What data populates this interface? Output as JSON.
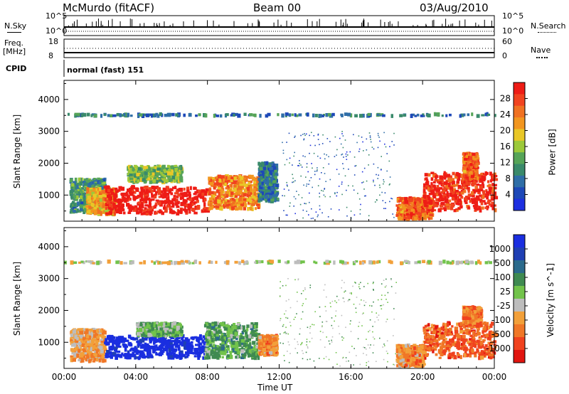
{
  "header": {
    "station": "McMurdo (fitACF)",
    "beam": "Beam 00",
    "date": "03/Aug/2010"
  },
  "top_panels": {
    "nsky_label": "N.Sky",
    "nsearch_label": "N.Search",
    "noise_ticks": [
      "10^5",
      "10^0"
    ],
    "freq_label": "Freq.",
    "freq_unit": "[MHz]",
    "freq_ticks": [
      "18",
      "8"
    ],
    "nave_label": "Nave",
    "nave_ticks": [
      "60",
      "0"
    ],
    "cpid_label": "CPID",
    "cpid_value": "normal (fast) 151"
  },
  "colors": {
    "power_scale": [
      "#1d2fe0",
      "#1d48b8",
      "#2f6ea7",
      "#3a8a6b",
      "#56a458",
      "#9cc93a",
      "#e9c727",
      "#f2961f",
      "#f07121",
      "#f1431f",
      "#ee1c16"
    ],
    "velocity_scale": [
      "#e11510",
      "#f0421e",
      "#f07727",
      "#f2a03a",
      "#bdbdbd",
      "#72c34b",
      "#3f8a51",
      "#2b6a8c",
      "#1f3fb3",
      "#1a2ee0"
    ]
  },
  "chart_data": [
    {
      "type": "heatmap",
      "panel": "power",
      "title": "",
      "xlabel": "Time UT",
      "ylabel": "Slant Range [km]",
      "xlim": [
        0,
        24
      ],
      "ylim": [
        180,
        4600
      ],
      "x_ticks": [
        "00:00",
        "04:00",
        "08:00",
        "12:00",
        "16:00",
        "20:00",
        "00:00"
      ],
      "y_ticks": [
        1000,
        2000,
        3000,
        4000
      ],
      "colorbar": {
        "label": "Power [dB]",
        "ticks": [
          "4",
          "8",
          "12",
          "16",
          "20",
          "24",
          "28"
        ],
        "range": [
          0,
          30
        ]
      },
      "regions": [
        {
          "t0": 0.3,
          "t1": 2.2,
          "r0": 450,
          "r1": 1500,
          "value_db": 10
        },
        {
          "t0": 1.2,
          "t1": 2.8,
          "r0": 400,
          "r1": 1200,
          "value_db": 20
        },
        {
          "t0": 2.2,
          "t1": 8.0,
          "r0": 400,
          "r1": 1250,
          "value_db": 30
        },
        {
          "t0": 3.5,
          "t1": 6.5,
          "r0": 1400,
          "r1": 1900,
          "value_db": 14
        },
        {
          "t0": 8.0,
          "t1": 10.8,
          "r0": 550,
          "r1": 1600,
          "value_db": 22
        },
        {
          "t0": 10.8,
          "t1": 11.8,
          "r0": 800,
          "r1": 2000,
          "value_db": 8
        },
        {
          "t0": 12.0,
          "t1": 18.5,
          "r0": 250,
          "r1": 3000,
          "value_db": 6
        },
        {
          "t0": 18.5,
          "t1": 20.5,
          "r0": 250,
          "r1": 900,
          "value_db": 24
        },
        {
          "t0": 20.0,
          "t1": 24.0,
          "r0": 500,
          "r1": 1700,
          "value_db": 28
        },
        {
          "t0": 22.2,
          "t1": 23.0,
          "r0": 1500,
          "r1": 2300,
          "value_db": 24
        },
        {
          "t0": 0.0,
          "t1": 24.0,
          "r0": 3480,
          "r1": 3540,
          "value_db": 8
        }
      ]
    },
    {
      "type": "heatmap",
      "panel": "velocity",
      "title": "",
      "xlabel": "Time UT",
      "ylabel": "Slant Range [km]",
      "xlim": [
        0,
        24
      ],
      "ylim": [
        180,
        4600
      ],
      "x_ticks": [
        "00:00",
        "04:00",
        "08:00",
        "12:00",
        "16:00",
        "20:00",
        "00:00"
      ],
      "y_ticks": [
        1000,
        2000,
        3000,
        4000
      ],
      "colorbar": {
        "label": "Velocity [m s^-1]",
        "ticks": [
          "1000",
          "500",
          "100",
          "25",
          "-25",
          "-100",
          "-500",
          "-1000"
        ],
        "range": [
          -1000,
          1000
        ]
      },
      "regions": [
        {
          "t0": 0.3,
          "t1": 2.2,
          "r0": 400,
          "r1": 1400,
          "value_ms": -300
        },
        {
          "t0": 2.2,
          "t1": 7.8,
          "r0": 500,
          "r1": 1200,
          "value_ms": 1000
        },
        {
          "t0": 4.0,
          "t1": 6.5,
          "r0": 1200,
          "r1": 1600,
          "value_ms": 150
        },
        {
          "t0": 7.8,
          "t1": 10.8,
          "r0": 500,
          "r1": 1600,
          "value_ms": 200
        },
        {
          "t0": 10.8,
          "t1": 11.8,
          "r0": 600,
          "r1": 1200,
          "value_ms": -400
        },
        {
          "t0": 12.0,
          "t1": 18.5,
          "r0": 250,
          "r1": 3000,
          "value_ms": 100
        },
        {
          "t0": 18.5,
          "t1": 20.0,
          "r0": 250,
          "r1": 900,
          "value_ms": -400
        },
        {
          "t0": 20.0,
          "t1": 24.0,
          "r0": 500,
          "r1": 1600,
          "value_ms": -600
        },
        {
          "t0": 22.2,
          "t1": 23.2,
          "r0": 1500,
          "r1": 2100,
          "value_ms": -500
        },
        {
          "t0": 0.0,
          "t1": 24.0,
          "r0": 3480,
          "r1": 3540,
          "value_ms": -100
        }
      ]
    }
  ]
}
